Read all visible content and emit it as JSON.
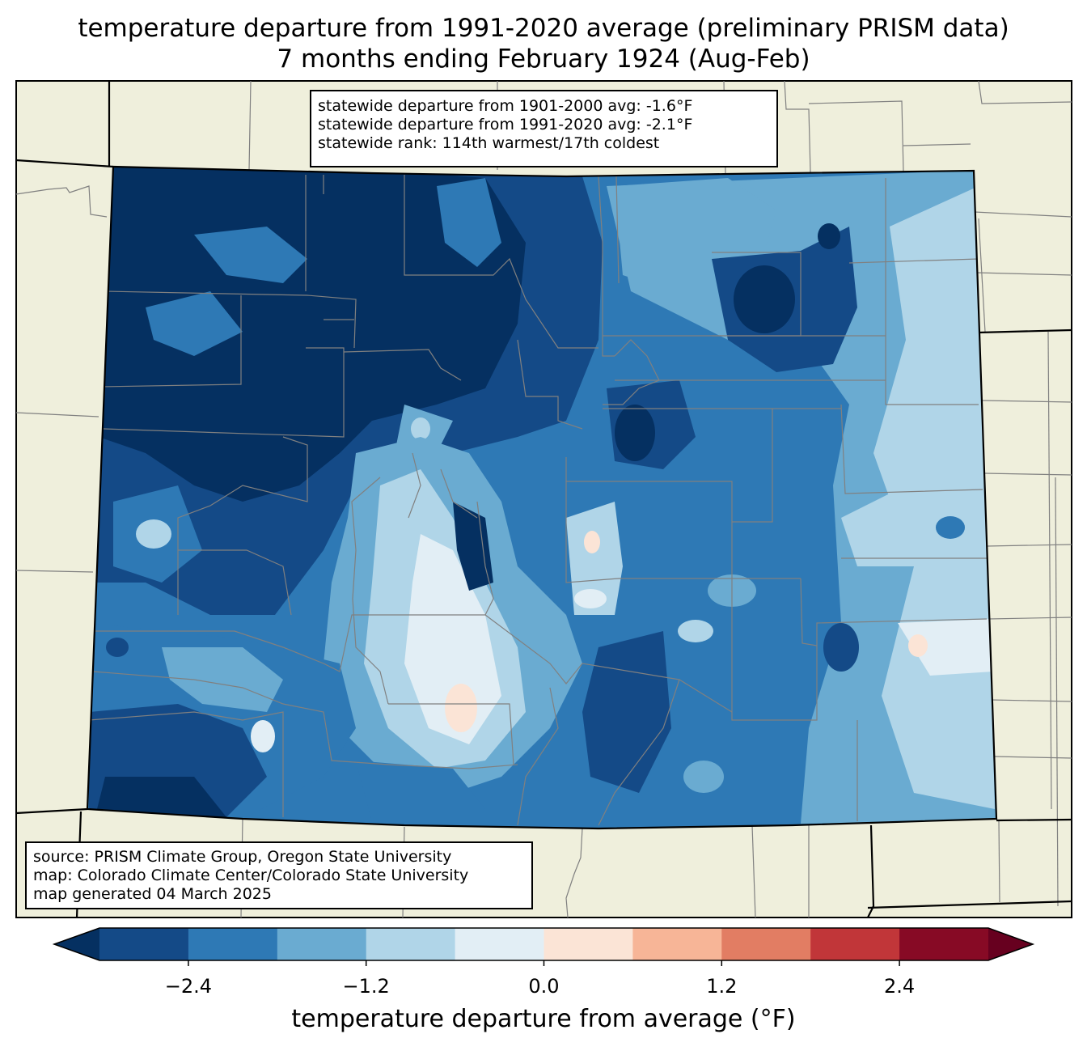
{
  "title": {
    "line1": "temperature departure from 1991-2020 average (preliminary PRISM data)",
    "line2": "7 months ending February 1924 (Aug-Feb)"
  },
  "stats": {
    "line1": "statewide departure from 1901-2000 avg: -1.6°F",
    "line2": "statewide departure from 1991-2020 avg: -2.1°F",
    "line3": "statewide rank: 114th warmest/17th coldest"
  },
  "credits": {
    "line1": "source: PRISM Climate Group, Oregon State University",
    "line2": "map: Colorado Climate Center/Colorado State University",
    "line3": "map generated 04 March 2025"
  },
  "colorbar": {
    "label": "temperature departure from average (°F)",
    "ticks": [
      "−2.4",
      "−1.2",
      "0.0",
      "1.2",
      "2.4"
    ],
    "tick_values": [
      -2.4,
      -1.2,
      0.0,
      1.2,
      2.4
    ],
    "range": [
      -3.0,
      3.0
    ],
    "step": 0.6,
    "under_color": "#053061",
    "over_color": "#67001f",
    "colors": [
      "#144a87",
      "#2e79b5",
      "#6aabd1",
      "#b0d5e8",
      "#e2eef5",
      "#fbe4d6",
      "#f7b597",
      "#e27d63",
      "#c13639",
      "#870a25"
    ]
  },
  "colors": {
    "land": "#efefdc",
    "county_lines": "#808080",
    "state_lines": "#000000"
  }
}
